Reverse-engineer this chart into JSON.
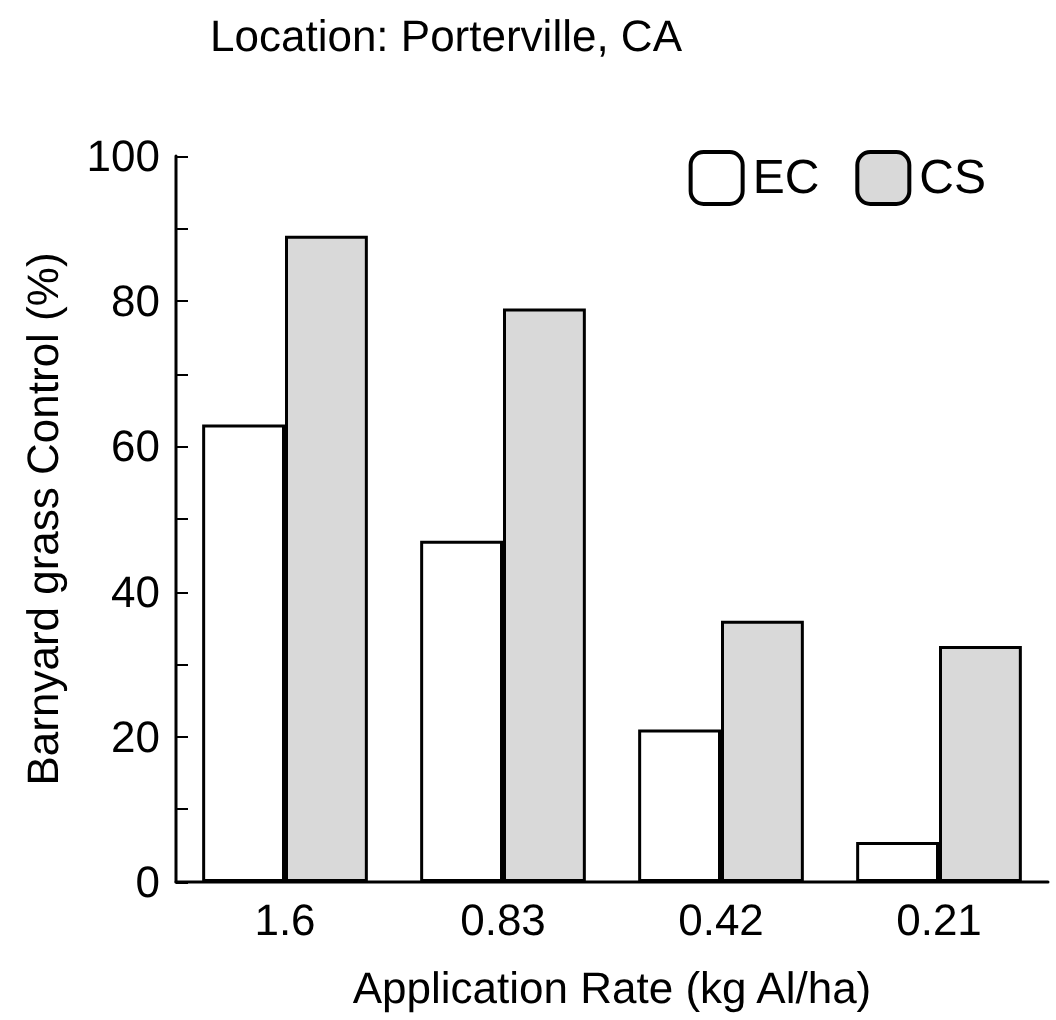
{
  "chart_data": {
    "type": "bar",
    "title": "Location: Porterville, CA",
    "xlabel": "Application Rate (kg Al/ha)",
    "ylabel": "Barnyard grass Control (%)",
    "categories": [
      "1.6",
      "0.83",
      "0.42",
      "0.21"
    ],
    "series": [
      {
        "name": "EC",
        "color": "#ffffff",
        "values": [
          63,
          47,
          21,
          5.5
        ]
      },
      {
        "name": "CS",
        "color": "#d9d9d9",
        "values": [
          89,
          79,
          36,
          32.5
        ]
      }
    ],
    "ylim": [
      0,
      100
    ],
    "yticks": [
      0,
      {
        "value": 10,
        "label": null
      },
      20,
      {
        "value": 30,
        "label": null
      },
      40,
      {
        "value": 50,
        "label": null
      },
      60,
      {
        "value": 70,
        "label": null
      },
      80,
      {
        "value": 90,
        "label": null
      },
      100
    ],
    "grid": false,
    "legend": "top right"
  }
}
